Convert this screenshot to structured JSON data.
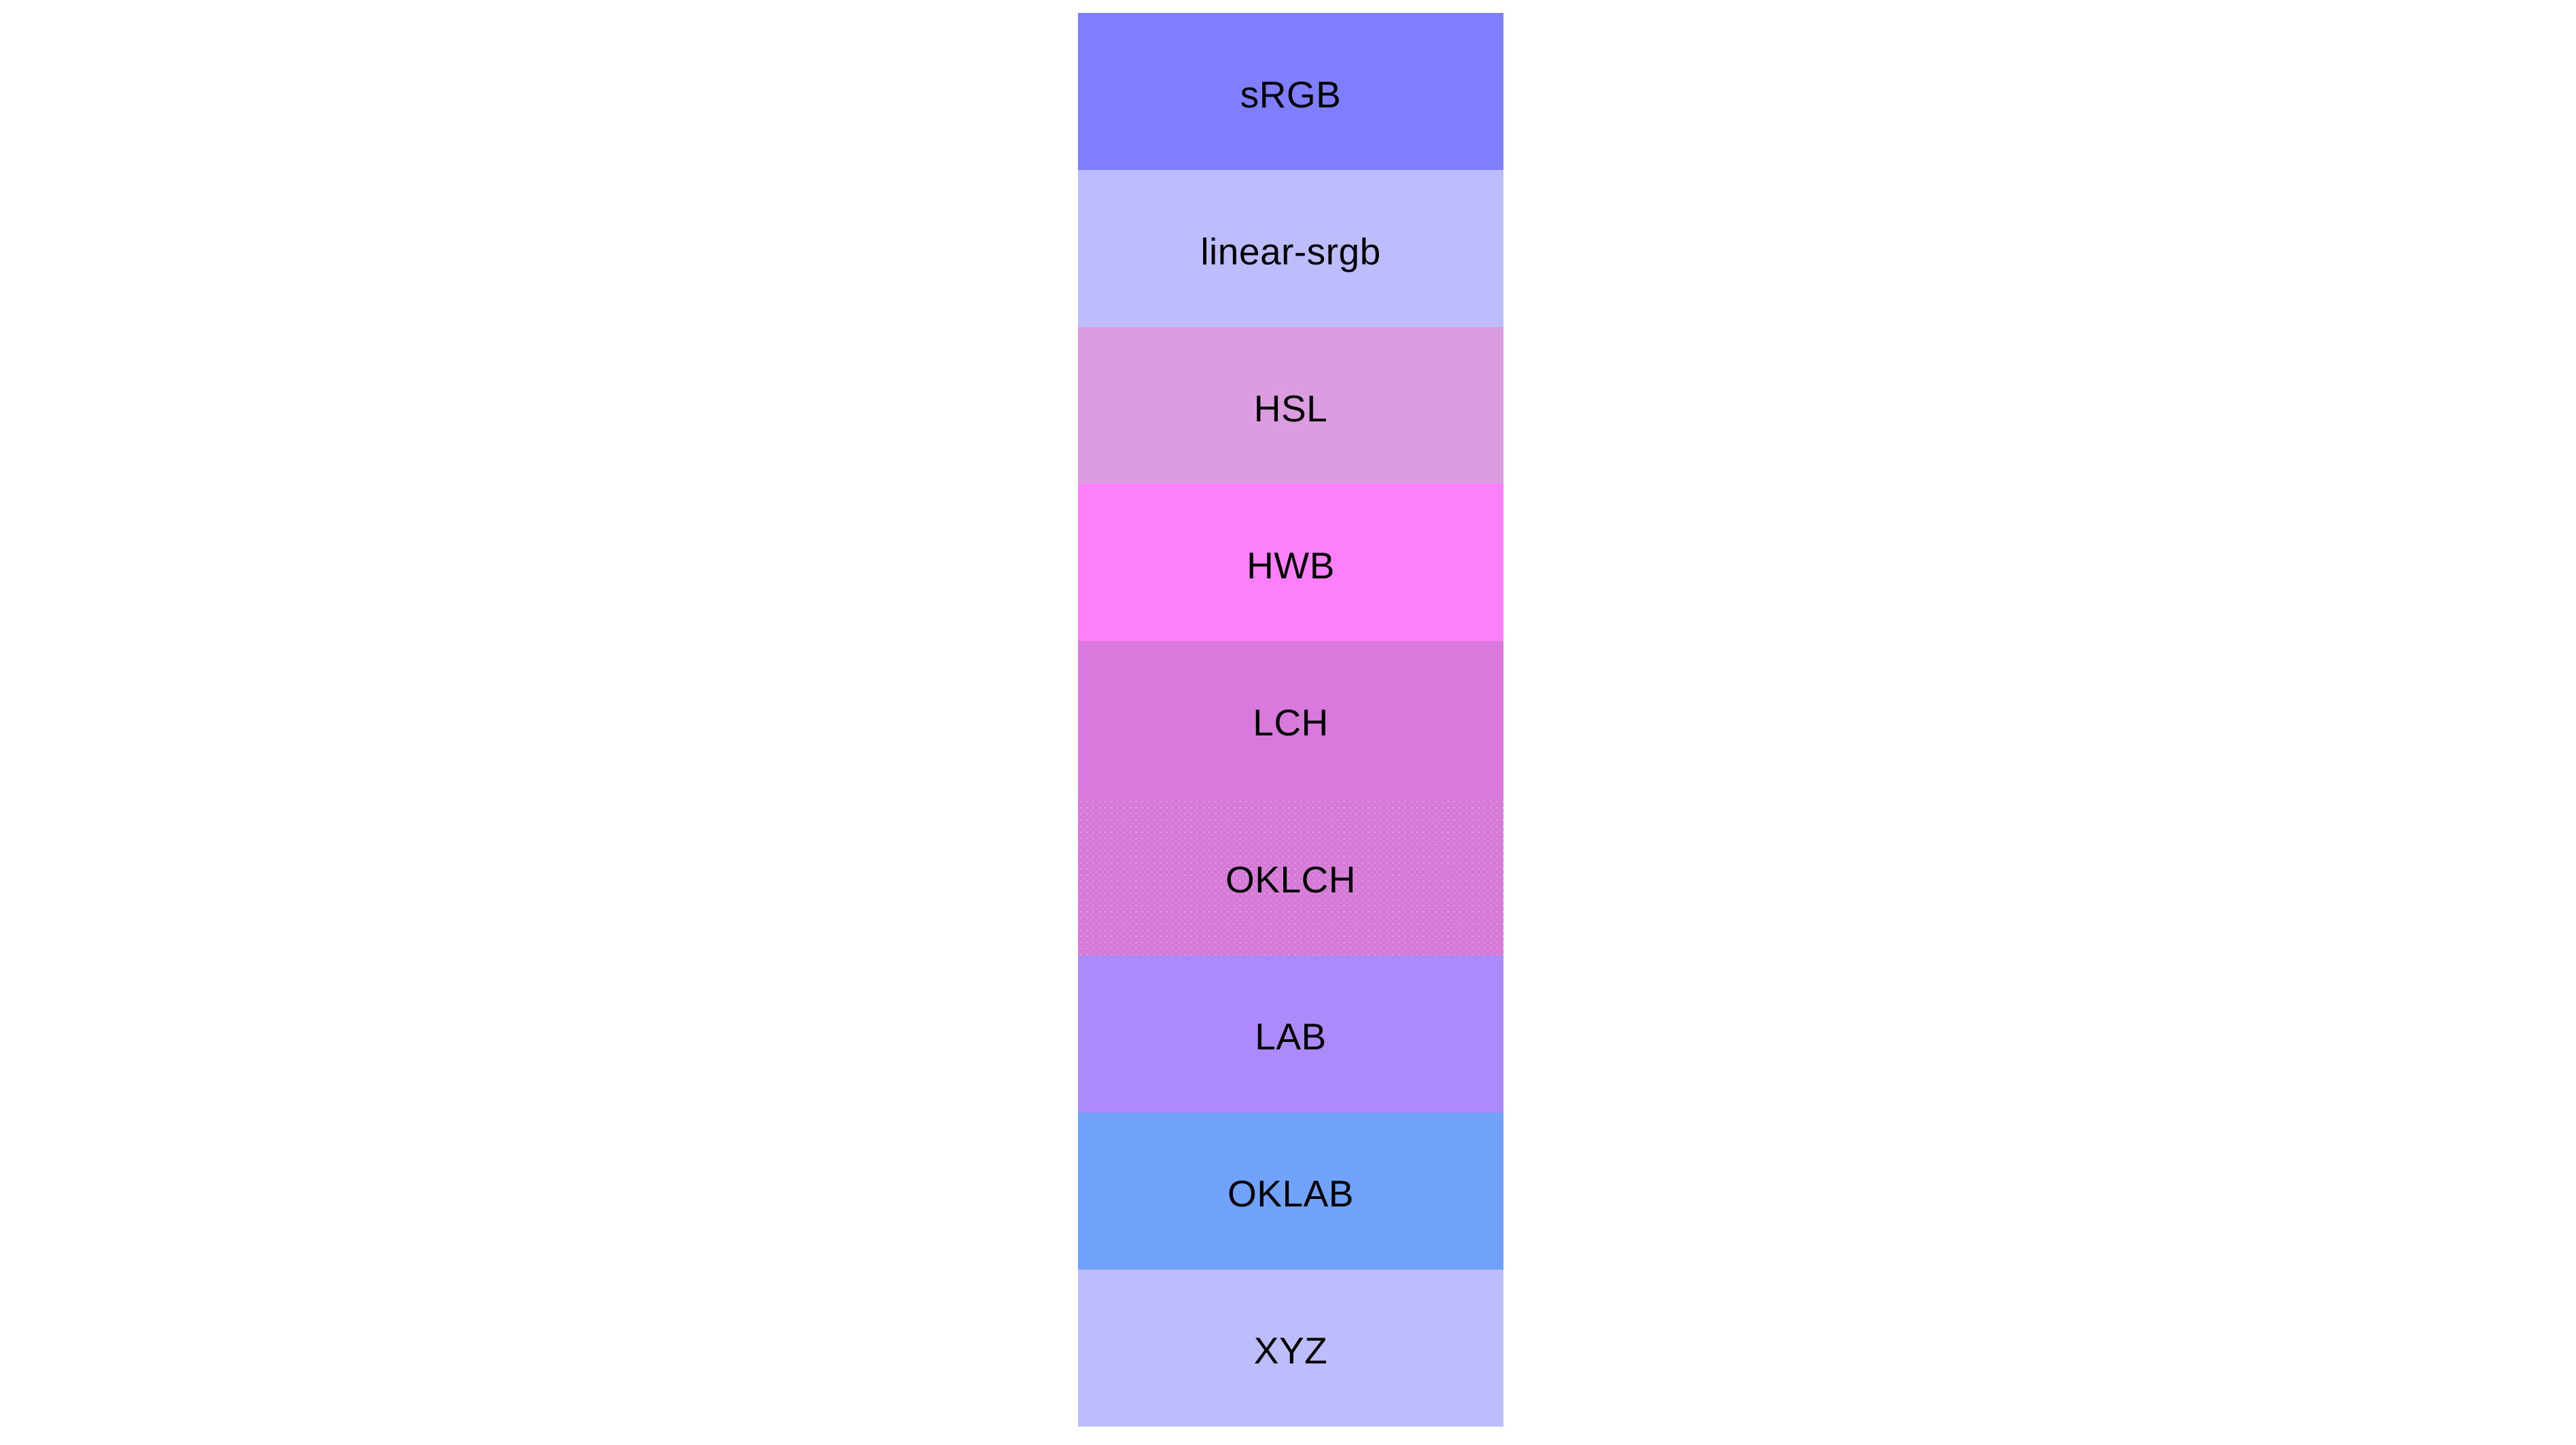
{
  "page": {
    "background_color": "#ffffff",
    "text_color": "#000000"
  },
  "swatch_column": {
    "items": [
      {
        "label": "sRGB",
        "color": "#7f7efc",
        "dither": false
      },
      {
        "label": "linear-srgb",
        "color": "#bdbcfd",
        "dither": false
      },
      {
        "label": "HSL",
        "color": "#db9ce0",
        "dither": false
      },
      {
        "label": "HWB",
        "color": "#fe7ffc",
        "dither": false
      },
      {
        "label": "LCH",
        "color": "#d979dd",
        "dither": false
      },
      {
        "label": "OKLCH",
        "color": "#d47bd8",
        "dither": true
      },
      {
        "label": "LAB",
        "color": "#ac8afc",
        "dither": false
      },
      {
        "label": "OKLAB",
        "color": "#70a1fb",
        "dither": false
      },
      {
        "label": "XYZ",
        "color": "#bdbcfd",
        "dither": false
      }
    ]
  }
}
